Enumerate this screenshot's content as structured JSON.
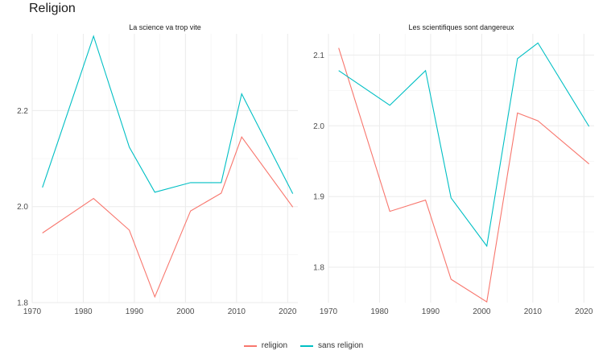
{
  "title": "Religion",
  "chart_data": [
    {
      "type": "line",
      "title": "La science va trop vite",
      "xlim": [
        1970,
        2022
      ],
      "ylim": [
        1.8,
        2.36
      ],
      "x_ticks": [
        1970,
        1980,
        1990,
        2000,
        2010,
        2020
      ],
      "y_ticks": [
        1.8,
        2.0,
        2.2
      ],
      "y_tick_labels": [
        "1.8",
        "2.0",
        "2.2"
      ],
      "series": [
        {
          "name": "religion",
          "color": "#F8766D",
          "x": [
            1972,
            1982,
            1989,
            1994,
            2001,
            2007,
            2011,
            2021
          ],
          "y": [
            1.945,
            2.017,
            1.951,
            1.812,
            1.991,
            2.028,
            2.145,
            1.999
          ]
        },
        {
          "name": "sans religion",
          "color": "#00BFC4",
          "x": [
            1972,
            1982,
            1989,
            1994,
            2001,
            2007,
            2011,
            2021
          ],
          "y": [
            2.04,
            2.355,
            2.124,
            2.03,
            2.05,
            2.05,
            2.235,
            2.027
          ]
        }
      ]
    },
    {
      "type": "line",
      "title": "Les scientifiques sont dangereux",
      "xlim": [
        1970,
        2022
      ],
      "ylim": [
        1.75,
        2.13
      ],
      "x_ticks": [
        1970,
        1980,
        1990,
        2000,
        2010,
        2020
      ],
      "y_ticks": [
        1.8,
        1.9,
        2.0,
        2.1
      ],
      "y_tick_labels": [
        "1.8",
        "1.9",
        "2.0",
        "2.1"
      ],
      "series": [
        {
          "name": "religion",
          "color": "#F8766D",
          "x": [
            1972,
            1982,
            1989,
            1994,
            2001,
            2007,
            2011,
            2021
          ],
          "y": [
            2.11,
            1.879,
            1.895,
            1.783,
            1.751,
            2.018,
            2.007,
            1.946
          ]
        },
        {
          "name": "sans religion",
          "color": "#00BFC4",
          "x": [
            1972,
            1982,
            1989,
            1994,
            2001,
            2007,
            2011,
            2021
          ],
          "y": [
            2.078,
            2.029,
            2.078,
            1.898,
            1.83,
            2.095,
            2.117,
            1.999
          ]
        }
      ]
    }
  ],
  "legend": [
    {
      "label": "religion",
      "color": "#F8766D"
    },
    {
      "label": "sans religion",
      "color": "#00BFC4"
    }
  ]
}
